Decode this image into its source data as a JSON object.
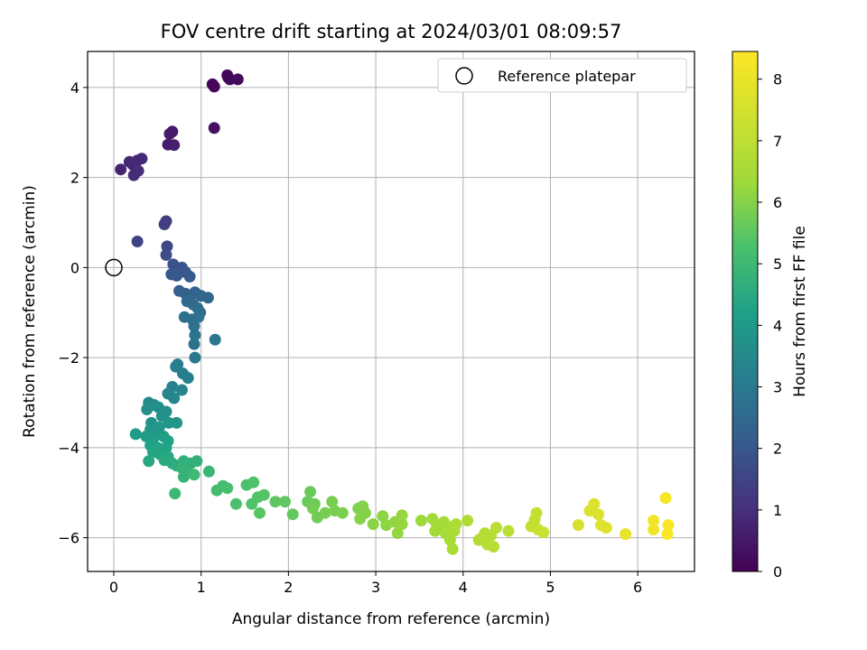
{
  "chart_data": {
    "type": "scatter",
    "title": "FOV centre drift starting at 2024/03/01 08:09:57",
    "xlabel": "Angular distance from reference (arcmin)",
    "ylabel": "Rotation from reference (arcmin)",
    "xlim": [
      -0.3,
      6.65
    ],
    "ylim": [
      -6.75,
      4.8
    ],
    "xticks": [
      "0",
      "1",
      "2",
      "3",
      "4",
      "5",
      "6"
    ],
    "yticks": [
      "4",
      "2",
      "0",
      "−2",
      "−4",
      "−6"
    ],
    "grid": true,
    "legend": {
      "label": "Reference platepar",
      "position": "top-right"
    },
    "reference_point": {
      "x": 0,
      "y": 0
    },
    "colorbar": {
      "label": "Hours from first FF file",
      "range": [
        0,
        8.45
      ],
      "ticks": [
        "0",
        "1",
        "2",
        "3",
        "4",
        "5",
        "6",
        "7",
        "8"
      ],
      "colormap": "viridis"
    },
    "points": [
      {
        "x": 1.13,
        "y": 4.07,
        "c": 0.1
      },
      {
        "x": 1.15,
        "y": 4.02,
        "c": 0.12
      },
      {
        "x": 1.3,
        "y": 4.27,
        "c": 0.15
      },
      {
        "x": 1.33,
        "y": 4.18,
        "c": 0.18
      },
      {
        "x": 1.42,
        "y": 4.18,
        "c": 0.2
      },
      {
        "x": 1.31,
        "y": 4.22,
        "c": 0.16
      },
      {
        "x": 1.15,
        "y": 3.1,
        "c": 0.3
      },
      {
        "x": 0.67,
        "y": 3.02,
        "c": 0.5
      },
      {
        "x": 0.64,
        "y": 2.97,
        "c": 0.55
      },
      {
        "x": 0.62,
        "y": 2.73,
        "c": 0.6
      },
      {
        "x": 0.69,
        "y": 2.72,
        "c": 0.62
      },
      {
        "x": 0.08,
        "y": 2.18,
        "c": 0.75
      },
      {
        "x": 0.18,
        "y": 2.35,
        "c": 0.8
      },
      {
        "x": 0.22,
        "y": 2.28,
        "c": 0.82
      },
      {
        "x": 0.27,
        "y": 2.38,
        "c": 0.84
      },
      {
        "x": 0.32,
        "y": 2.42,
        "c": 0.86
      },
      {
        "x": 0.23,
        "y": 2.05,
        "c": 0.9
      },
      {
        "x": 0.28,
        "y": 2.15,
        "c": 0.92
      },
      {
        "x": 0.6,
        "y": 1.03,
        "c": 1.3
      },
      {
        "x": 0.58,
        "y": 0.96,
        "c": 1.35
      },
      {
        "x": 0.27,
        "y": 0.58,
        "c": 1.45
      },
      {
        "x": 0.61,
        "y": 0.47,
        "c": 1.6
      },
      {
        "x": 0.6,
        "y": 0.28,
        "c": 1.7
      },
      {
        "x": 0.68,
        "y": 0.07,
        "c": 1.85
      },
      {
        "x": 0.78,
        "y": 0.0,
        "c": 1.9
      },
      {
        "x": 0.82,
        "y": -0.1,
        "c": 1.95
      },
      {
        "x": 0.66,
        "y": -0.15,
        "c": 1.98
      },
      {
        "x": 0.72,
        "y": -0.18,
        "c": 2.0
      },
      {
        "x": 0.87,
        "y": -0.2,
        "c": 2.05
      },
      {
        "x": 0.75,
        "y": -0.52,
        "c": 2.2
      },
      {
        "x": 0.82,
        "y": -0.58,
        "c": 2.25
      },
      {
        "x": 0.88,
        "y": -0.62,
        "c": 2.3
      },
      {
        "x": 0.93,
        "y": -0.55,
        "c": 2.35
      },
      {
        "x": 1.0,
        "y": -0.63,
        "c": 2.4
      },
      {
        "x": 1.08,
        "y": -0.67,
        "c": 2.45
      },
      {
        "x": 0.84,
        "y": -0.75,
        "c": 2.5
      },
      {
        "x": 0.91,
        "y": -0.82,
        "c": 2.55
      },
      {
        "x": 0.96,
        "y": -0.9,
        "c": 2.6
      },
      {
        "x": 0.99,
        "y": -1.0,
        "c": 2.65
      },
      {
        "x": 0.81,
        "y": -1.1,
        "c": 2.68
      },
      {
        "x": 0.9,
        "y": -1.15,
        "c": 2.72
      },
      {
        "x": 0.97,
        "y": -1.1,
        "c": 2.75
      },
      {
        "x": 0.92,
        "y": -1.3,
        "c": 2.78
      },
      {
        "x": 0.93,
        "y": -1.5,
        "c": 2.82
      },
      {
        "x": 0.92,
        "y": -1.7,
        "c": 2.85
      },
      {
        "x": 1.16,
        "y": -1.6,
        "c": 2.9
      },
      {
        "x": 0.93,
        "y": -2.0,
        "c": 2.95
      },
      {
        "x": 0.73,
        "y": -2.15,
        "c": 3.1
      },
      {
        "x": 0.71,
        "y": -2.2,
        "c": 3.12
      },
      {
        "x": 0.79,
        "y": -2.35,
        "c": 3.15
      },
      {
        "x": 0.85,
        "y": -2.45,
        "c": 3.18
      },
      {
        "x": 0.67,
        "y": -2.65,
        "c": 3.3
      },
      {
        "x": 0.62,
        "y": -2.8,
        "c": 3.35
      },
      {
        "x": 0.78,
        "y": -2.72,
        "c": 3.38
      },
      {
        "x": 0.69,
        "y": -2.9,
        "c": 3.42
      },
      {
        "x": 0.4,
        "y": -3.0,
        "c": 3.55
      },
      {
        "x": 0.46,
        "y": -3.05,
        "c": 3.6
      },
      {
        "x": 0.38,
        "y": -3.15,
        "c": 3.62
      },
      {
        "x": 0.51,
        "y": -3.1,
        "c": 3.65
      },
      {
        "x": 0.6,
        "y": -3.2,
        "c": 3.7
      },
      {
        "x": 0.55,
        "y": -3.3,
        "c": 3.72
      },
      {
        "x": 0.43,
        "y": -3.45,
        "c": 3.8
      },
      {
        "x": 0.63,
        "y": -3.45,
        "c": 3.82
      },
      {
        "x": 0.72,
        "y": -3.45,
        "c": 3.85
      },
      {
        "x": 0.52,
        "y": -3.55,
        "c": 3.88
      },
      {
        "x": 0.42,
        "y": -3.6,
        "c": 3.9
      },
      {
        "x": 0.48,
        "y": -3.7,
        "c": 3.95
      },
      {
        "x": 0.25,
        "y": -3.7,
        "c": 4.05
      },
      {
        "x": 0.37,
        "y": -3.75,
        "c": 4.1
      },
      {
        "x": 0.45,
        "y": -3.8,
        "c": 4.12
      },
      {
        "x": 0.57,
        "y": -3.75,
        "c": 4.15
      },
      {
        "x": 0.62,
        "y": -3.85,
        "c": 4.18
      },
      {
        "x": 0.42,
        "y": -3.95,
        "c": 4.22
      },
      {
        "x": 0.5,
        "y": -4.0,
        "c": 4.25
      },
      {
        "x": 0.55,
        "y": -4.05,
        "c": 4.28
      },
      {
        "x": 0.6,
        "y": -4.0,
        "c": 4.3
      },
      {
        "x": 0.45,
        "y": -4.1,
        "c": 4.35
      },
      {
        "x": 0.53,
        "y": -4.15,
        "c": 4.38
      },
      {
        "x": 0.62,
        "y": -4.2,
        "c": 4.4
      },
      {
        "x": 0.4,
        "y": -4.3,
        "c": 4.45
      },
      {
        "x": 0.58,
        "y": -4.28,
        "c": 4.5
      },
      {
        "x": 0.67,
        "y": -4.35,
        "c": 4.55
      },
      {
        "x": 0.72,
        "y": -4.4,
        "c": 4.6
      },
      {
        "x": 0.8,
        "y": -4.3,
        "c": 4.7
      },
      {
        "x": 0.88,
        "y": -4.35,
        "c": 4.72
      },
      {
        "x": 0.95,
        "y": -4.3,
        "c": 4.75
      },
      {
        "x": 0.78,
        "y": -4.45,
        "c": 4.78
      },
      {
        "x": 0.85,
        "y": -4.55,
        "c": 4.8
      },
      {
        "x": 0.8,
        "y": -4.65,
        "c": 4.82
      },
      {
        "x": 1.09,
        "y": -4.53,
        "c": 4.9
      },
      {
        "x": 0.7,
        "y": -5.02,
        "c": 4.95
      },
      {
        "x": 0.92,
        "y": -4.6,
        "c": 4.98
      },
      {
        "x": 1.18,
        "y": -4.95,
        "c": 5.1
      },
      {
        "x": 1.25,
        "y": -4.85,
        "c": 5.15
      },
      {
        "x": 1.3,
        "y": -4.9,
        "c": 5.18
      },
      {
        "x": 1.4,
        "y": -5.25,
        "c": 5.25
      },
      {
        "x": 1.52,
        "y": -4.83,
        "c": 5.3
      },
      {
        "x": 1.6,
        "y": -4.77,
        "c": 5.32
      },
      {
        "x": 1.58,
        "y": -5.25,
        "c": 5.35
      },
      {
        "x": 1.65,
        "y": -5.1,
        "c": 5.38
      },
      {
        "x": 1.72,
        "y": -5.05,
        "c": 5.42
      },
      {
        "x": 1.67,
        "y": -5.45,
        "c": 5.45
      },
      {
        "x": 1.85,
        "y": -5.2,
        "c": 5.5
      },
      {
        "x": 1.96,
        "y": -5.2,
        "c": 5.55
      },
      {
        "x": 2.05,
        "y": -5.48,
        "c": 5.6
      },
      {
        "x": 2.22,
        "y": -5.2,
        "c": 5.65
      },
      {
        "x": 2.25,
        "y": -4.98,
        "c": 5.68
      },
      {
        "x": 2.3,
        "y": -5.25,
        "c": 5.72
      },
      {
        "x": 2.33,
        "y": -5.55,
        "c": 5.75
      },
      {
        "x": 2.28,
        "y": -5.35,
        "c": 5.78
      },
      {
        "x": 2.42,
        "y": -5.45,
        "c": 5.82
      },
      {
        "x": 2.5,
        "y": -5.2,
        "c": 5.85
      },
      {
        "x": 2.53,
        "y": -5.4,
        "c": 5.88
      },
      {
        "x": 2.62,
        "y": -5.45,
        "c": 5.9
      },
      {
        "x": 2.8,
        "y": -5.35,
        "c": 5.95
      },
      {
        "x": 2.85,
        "y": -5.3,
        "c": 5.98
      },
      {
        "x": 2.88,
        "y": -5.45,
        "c": 6.0
      },
      {
        "x": 2.82,
        "y": -5.58,
        "c": 6.02
      },
      {
        "x": 2.97,
        "y": -5.7,
        "c": 6.05
      },
      {
        "x": 3.08,
        "y": -5.52,
        "c": 6.1
      },
      {
        "x": 3.12,
        "y": -5.72,
        "c": 6.12
      },
      {
        "x": 3.22,
        "y": -5.65,
        "c": 6.15
      },
      {
        "x": 3.25,
        "y": -5.9,
        "c": 6.18
      },
      {
        "x": 3.3,
        "y": -5.5,
        "c": 6.2
      },
      {
        "x": 3.3,
        "y": -5.7,
        "c": 6.22
      },
      {
        "x": 3.52,
        "y": -5.62,
        "c": 6.3
      },
      {
        "x": 3.65,
        "y": -5.58,
        "c": 6.35
      },
      {
        "x": 3.68,
        "y": -5.85,
        "c": 6.4
      },
      {
        "x": 3.7,
        "y": -5.72,
        "c": 6.42
      },
      {
        "x": 3.75,
        "y": -5.78,
        "c": 6.45
      },
      {
        "x": 3.78,
        "y": -5.65,
        "c": 6.48
      },
      {
        "x": 3.8,
        "y": -5.9,
        "c": 6.5
      },
      {
        "x": 3.82,
        "y": -5.75,
        "c": 6.52
      },
      {
        "x": 3.85,
        "y": -6.05,
        "c": 6.55
      },
      {
        "x": 3.88,
        "y": -6.25,
        "c": 6.58
      },
      {
        "x": 3.9,
        "y": -5.85,
        "c": 6.6
      },
      {
        "x": 3.92,
        "y": -5.7,
        "c": 6.62
      },
      {
        "x": 4.05,
        "y": -5.62,
        "c": 6.7
      },
      {
        "x": 4.18,
        "y": -6.05,
        "c": 6.75
      },
      {
        "x": 4.22,
        "y": -6.0,
        "c": 6.78
      },
      {
        "x": 4.25,
        "y": -5.9,
        "c": 6.8
      },
      {
        "x": 4.28,
        "y": -6.15,
        "c": 6.82
      },
      {
        "x": 4.32,
        "y": -5.95,
        "c": 6.85
      },
      {
        "x": 4.35,
        "y": -6.2,
        "c": 6.88
      },
      {
        "x": 4.38,
        "y": -5.78,
        "c": 6.9
      },
      {
        "x": 4.52,
        "y": -5.85,
        "c": 6.95
      },
      {
        "x": 4.78,
        "y": -5.75,
        "c": 7.1
      },
      {
        "x": 4.82,
        "y": -5.6,
        "c": 7.15
      },
      {
        "x": 4.84,
        "y": -5.45,
        "c": 7.18
      },
      {
        "x": 4.86,
        "y": -5.82,
        "c": 7.2
      },
      {
        "x": 4.92,
        "y": -5.88,
        "c": 7.25
      },
      {
        "x": 5.32,
        "y": -5.72,
        "c": 7.55
      },
      {
        "x": 5.45,
        "y": -5.4,
        "c": 7.65
      },
      {
        "x": 5.5,
        "y": -5.25,
        "c": 7.7
      },
      {
        "x": 5.55,
        "y": -5.48,
        "c": 7.72
      },
      {
        "x": 5.58,
        "y": -5.72,
        "c": 7.75
      },
      {
        "x": 5.64,
        "y": -5.78,
        "c": 7.8
      },
      {
        "x": 5.86,
        "y": -5.92,
        "c": 7.95
      },
      {
        "x": 6.18,
        "y": -5.62,
        "c": 8.15
      },
      {
        "x": 6.18,
        "y": -5.82,
        "c": 8.2
      },
      {
        "x": 6.32,
        "y": -5.12,
        "c": 8.3
      },
      {
        "x": 6.35,
        "y": -5.72,
        "c": 8.35
      },
      {
        "x": 6.34,
        "y": -5.92,
        "c": 8.38
      }
    ]
  }
}
